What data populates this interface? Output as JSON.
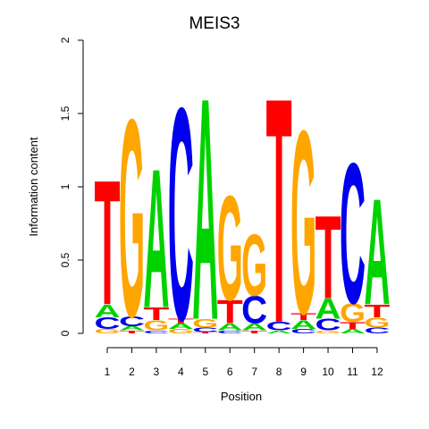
{
  "chart_data": {
    "type": "sequence-logo",
    "title": "MEIS3",
    "xlabel": "Position",
    "ylabel": "Information content",
    "ylim": [
      0,
      2
    ],
    "yticks": [
      "0",
      "0.5",
      "1",
      "1.5",
      "2"
    ],
    "positions": [
      "1",
      "2",
      "3",
      "4",
      "5",
      "6",
      "7",
      "8",
      "9",
      "10",
      "11",
      "12"
    ],
    "colors": {
      "A": "#00d200",
      "C": "#0000ee",
      "G": "#ffa500",
      "T": "#ff0000"
    },
    "stacks": [
      [
        {
          "base": "G",
          "bits": 0.03
        },
        {
          "base": "C",
          "bits": 0.08
        },
        {
          "base": "A",
          "bits": 0.09
        },
        {
          "base": "T",
          "bits": 0.87
        }
      ],
      [
        {
          "base": "T",
          "bits": 0.02
        },
        {
          "base": "A",
          "bits": 0.03
        },
        {
          "base": "C",
          "bits": 0.07
        },
        {
          "base": "G",
          "bits": 1.38
        }
      ],
      [
        {
          "base": "C",
          "bits": 0.02
        },
        {
          "base": "G",
          "bits": 0.07
        },
        {
          "base": "T",
          "bits": 0.09
        },
        {
          "base": "A",
          "bits": 0.97
        }
      ],
      [
        {
          "base": "G",
          "bits": 0.03
        },
        {
          "base": "A",
          "bits": 0.04
        },
        {
          "base": "T",
          "bits": 0.03
        },
        {
          "base": "C",
          "bits": 1.48
        }
      ],
      [
        {
          "base": "T",
          "bits": 0.01
        },
        {
          "base": "C",
          "bits": 0.03
        },
        {
          "base": "G",
          "bits": 0.06
        },
        {
          "base": "A",
          "bits": 1.55
        }
      ],
      [
        {
          "base": "C",
          "bits": 0.02
        },
        {
          "base": "A",
          "bits": 0.05
        },
        {
          "base": "T",
          "bits": 0.16
        },
        {
          "base": "G",
          "bits": 0.73
        }
      ],
      [
        {
          "base": "T",
          "bits": 0.02
        },
        {
          "base": "A",
          "bits": 0.05
        },
        {
          "base": "C",
          "bits": 0.19
        },
        {
          "base": "G",
          "bits": 0.43
        }
      ],
      [
        {
          "base": "A",
          "bits": 0.02
        },
        {
          "base": "C",
          "bits": 0.06
        },
        {
          "base": "T",
          "bits": 1.57
        }
      ],
      [
        {
          "base": "C",
          "bits": 0.03
        },
        {
          "base": "A",
          "bits": 0.06
        },
        {
          "base": "T",
          "bits": 0.05
        },
        {
          "base": "G",
          "bits": 1.28
        }
      ],
      [
        {
          "base": "G",
          "bits": 0.02
        },
        {
          "base": "C",
          "bits": 0.08
        },
        {
          "base": "A",
          "bits": 0.14
        },
        {
          "base": "T",
          "bits": 0.58
        }
      ],
      [
        {
          "base": "A",
          "bits": 0.03
        },
        {
          "base": "T",
          "bits": 0.05
        },
        {
          "base": "G",
          "bits": 0.13
        },
        {
          "base": "C",
          "bits": 0.98
        }
      ],
      [
        {
          "base": "C",
          "bits": 0.04
        },
        {
          "base": "G",
          "bits": 0.07
        },
        {
          "base": "T",
          "bits": 0.09
        },
        {
          "base": "A",
          "bits": 0.74
        }
      ]
    ]
  }
}
